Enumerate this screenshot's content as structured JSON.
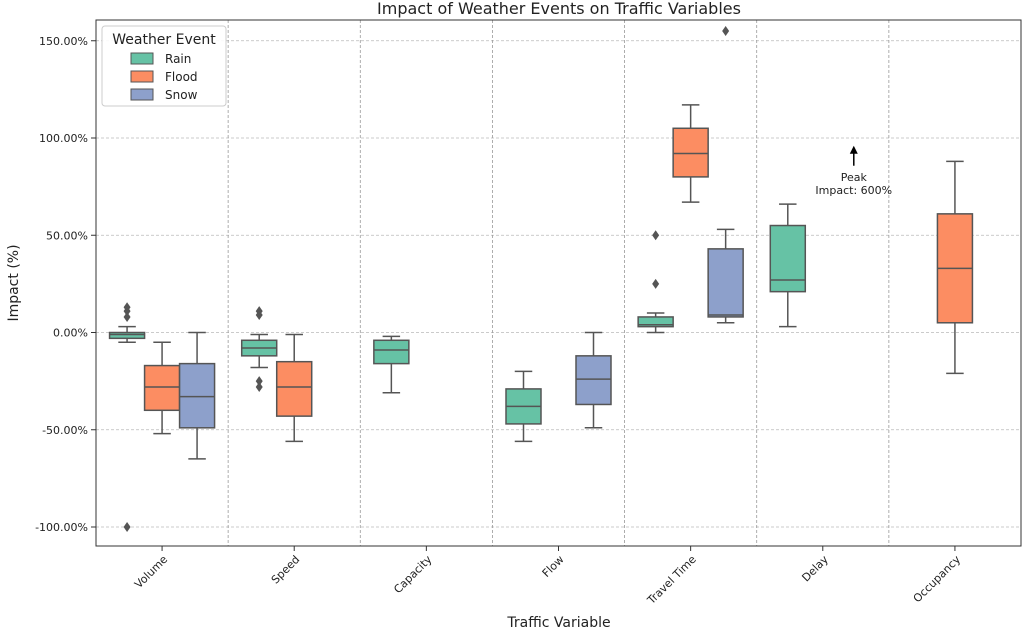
{
  "chart_data": {
    "type": "box",
    "title": "Impact of Weather Events on Traffic Variables",
    "xlabel": "Traffic Variable",
    "ylabel": "Impact (%)",
    "ylim": [
      -110,
      160
    ],
    "yticks": [
      -100,
      -50,
      0,
      50,
      100,
      150
    ],
    "ytick_labels": [
      "-100.00%",
      "-50.00%",
      "0.00%",
      "50.00%",
      "100.00%",
      "150.00%"
    ],
    "categories": [
      "Volume",
      "Speed",
      "Capacity",
      "Flow",
      "Travel Time",
      "Delay",
      "Occupancy"
    ],
    "grid": true,
    "legend": {
      "title": "Weather Event",
      "position": "top-left",
      "entries": [
        {
          "name": "Rain",
          "color": "#66c2a5"
        },
        {
          "name": "Flood",
          "color": "#fc8d62"
        },
        {
          "name": "Snow",
          "color": "#8da0cb"
        }
      ]
    },
    "boxes": [
      {
        "category": "Volume",
        "series": "Rain",
        "slot": 0,
        "whislo": -5,
        "q1": -3,
        "med": -1,
        "q3": 0,
        "whishi": 3,
        "fliers": [
          13,
          11,
          8,
          -100
        ]
      },
      {
        "category": "Volume",
        "series": "Flood",
        "slot": 1,
        "whislo": -52,
        "q1": -40,
        "med": -28,
        "q3": -17,
        "whishi": -5,
        "fliers": []
      },
      {
        "category": "Volume",
        "series": "Snow",
        "slot": 2,
        "whislo": -65,
        "q1": -49,
        "med": -33,
        "q3": -16,
        "whishi": 0,
        "fliers": []
      },
      {
        "category": "Speed",
        "series": "Rain",
        "slot": 0,
        "whislo": -18,
        "q1": -12,
        "med": -8,
        "q3": -4,
        "whishi": -1,
        "fliers": [
          11,
          9,
          -25,
          -28
        ]
      },
      {
        "category": "Speed",
        "series": "Flood",
        "slot": 1,
        "whislo": -56,
        "q1": -43,
        "med": -28,
        "q3": -15,
        "whishi": -1,
        "fliers": []
      },
      {
        "category": "Capacity",
        "series": "Rain",
        "slot": 0,
        "whislo": -31,
        "q1": -16,
        "med": -9,
        "q3": -4,
        "whishi": -2,
        "fliers": []
      },
      {
        "category": "Flow",
        "series": "Rain",
        "slot": 0,
        "whislo": -56,
        "q1": -47,
        "med": -38,
        "q3": -29,
        "whishi": -20,
        "fliers": []
      },
      {
        "category": "Flow",
        "series": "Snow",
        "slot": 2,
        "whislo": -49,
        "q1": -37,
        "med": -24,
        "q3": -12,
        "whishi": 0,
        "fliers": []
      },
      {
        "category": "Travel Time",
        "series": "Rain",
        "slot": 0,
        "whislo": 0,
        "q1": 3,
        "med": 4,
        "q3": 8,
        "whishi": 10,
        "fliers": [
          50,
          25
        ]
      },
      {
        "category": "Travel Time",
        "series": "Flood",
        "slot": 1,
        "whislo": 67,
        "q1": 80,
        "med": 92,
        "q3": 105,
        "whishi": 117,
        "fliers": []
      },
      {
        "category": "Travel Time",
        "series": "Snow",
        "slot": 2,
        "whislo": 5,
        "q1": 8,
        "med": 9,
        "q3": 43,
        "whishi": 53,
        "fliers": [
          155
        ]
      },
      {
        "category": "Delay",
        "series": "Rain",
        "slot": 0,
        "whislo": 3,
        "q1": 21,
        "med": 27,
        "q3": 55,
        "whishi": 66,
        "fliers": []
      },
      {
        "category": "Occupancy",
        "series": "Flood",
        "slot": 1,
        "whislo": -21,
        "q1": 5,
        "med": 33,
        "q3": 61,
        "whishi": 88,
        "fliers": []
      }
    ],
    "annotations": [
      {
        "category": "Delay",
        "text_lines": [
          "Peak",
          "Impact: 600%"
        ],
        "arrow_y": 95,
        "text_y": 78
      }
    ]
  }
}
